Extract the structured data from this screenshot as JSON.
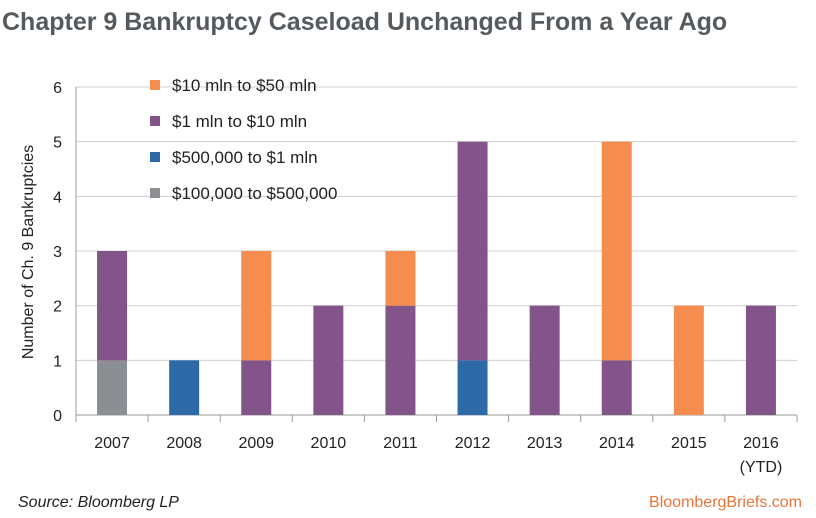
{
  "title": "Chapter 9 Bankruptcy Caseload Unchanged From a Year Ago",
  "source": "Source: Bloomberg LP",
  "brand": "BloombergBriefs.com",
  "colors": {
    "tier_10_50": "#f58d4e",
    "tier_1_10": "#83548a",
    "tier_500k_1m": "#2f6aa8",
    "tier_100k_500k": "#8b8f93",
    "grid": "#d0d0d0",
    "axis": "#9a9a9a"
  },
  "chart_data": {
    "type": "bar",
    "stacked": true,
    "categories": [
      "2007",
      "2008",
      "2009",
      "2010",
      "2011",
      "2012",
      "2013",
      "2014",
      "2015",
      "2016"
    ],
    "category_sublabels": [
      "",
      "",
      "",
      "",
      "",
      "",
      "",
      "",
      "",
      "(YTD)"
    ],
    "ylabel": "Number of Ch. 9 Bankruptcies",
    "ylim": [
      0,
      6
    ],
    "yticks": [
      0,
      1,
      2,
      3,
      4,
      5,
      6
    ],
    "grid": true,
    "legend_position": "top-left",
    "series": [
      {
        "name": "$100,000 to $500,000",
        "color": "#8b8f93",
        "values": [
          1,
          0,
          0,
          0,
          0,
          0,
          0,
          0,
          0,
          0
        ]
      },
      {
        "name": "$500,000 to $1 mln",
        "color": "#2f6aa8",
        "values": [
          0,
          1,
          0,
          0,
          0,
          1,
          0,
          0,
          0,
          0
        ]
      },
      {
        "name": "$1 mln to $10 mln",
        "color": "#83548a",
        "values": [
          2,
          0,
          1,
          2,
          2,
          4,
          2,
          1,
          0,
          2
        ]
      },
      {
        "name": "$10 mln to $50 mln",
        "color": "#f58d4e",
        "values": [
          0,
          0,
          2,
          0,
          1,
          0,
          0,
          4,
          2,
          0
        ]
      }
    ],
    "legend_order": [
      "$10 mln to $50 mln",
      "$1 mln to $10 mln",
      "$500,000 to $1 mln",
      "$100,000 to $500,000"
    ]
  }
}
